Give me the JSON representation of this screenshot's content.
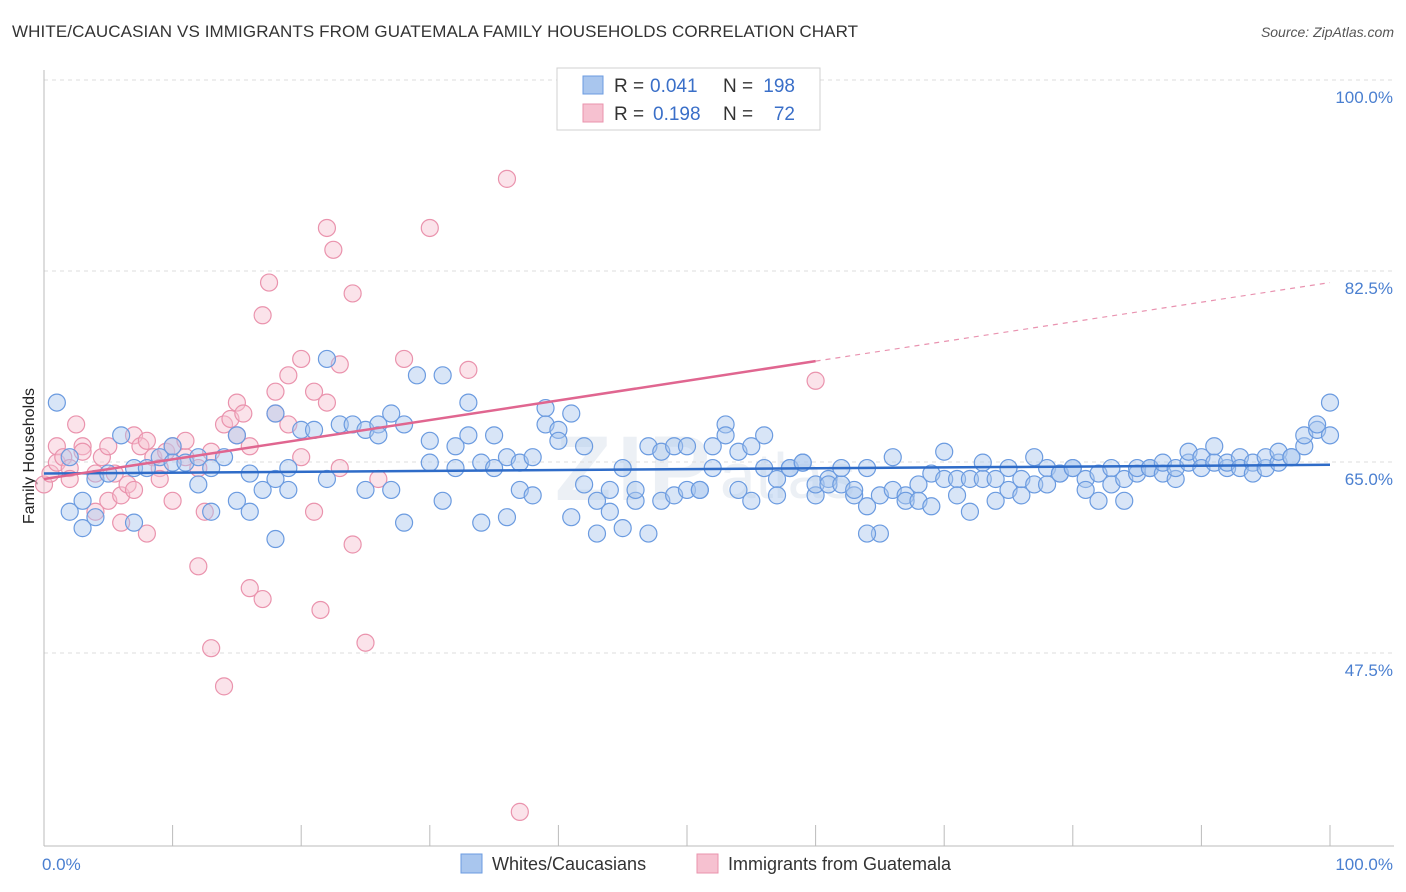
{
  "title": "WHITE/CAUCASIAN VS IMMIGRANTS FROM GUATEMALA FAMILY HOUSEHOLDS CORRELATION CHART",
  "source": "Source: ZipAtlas.com",
  "chart_data": {
    "type": "scatter",
    "ylabel": "Family Households",
    "xlim": [
      0,
      100
    ],
    "ylim": [
      30,
      100
    ],
    "x_tick_labels": {
      "left": "0.0%",
      "right": "100.0%"
    },
    "y_ticks": [
      {
        "value": 100.0,
        "label": "100.0%"
      },
      {
        "value": 82.5,
        "label": "82.5%"
      },
      {
        "value": 65.0,
        "label": "65.0%"
      },
      {
        "value": 47.5,
        "label": "47.5%"
      }
    ],
    "watermark": "ZIPatlas",
    "legend": {
      "rows": [
        {
          "r_label": "R =",
          "r_value": "0.041",
          "n_label": "N =",
          "n_value": "198"
        },
        {
          "r_label": "R =",
          "r_value": "0.198",
          "n_label": "N =",
          "n_value": "72"
        }
      ]
    },
    "colors": {
      "blue_fill": "#a9c6ee",
      "blue_stroke": "#6b9be0",
      "blue_line": "#2f6cc8",
      "pink_fill": "#f6c1d0",
      "pink_stroke": "#ea93ad",
      "pink_line": "#e06690"
    },
    "series": [
      {
        "name": "Whites/Caucasians",
        "trend": {
          "x0": 0,
          "y0": 65.5,
          "x1": 100,
          "y1": 66.3,
          "solid_to": 100
        },
        "points": [
          [
            1,
            72
          ],
          [
            2,
            62
          ],
          [
            2,
            67
          ],
          [
            3,
            63
          ],
          [
            3,
            60.5
          ],
          [
            4,
            61.5
          ],
          [
            4,
            65
          ],
          [
            5,
            65.5
          ],
          [
            6,
            69
          ],
          [
            7,
            61
          ],
          [
            7,
            66
          ],
          [
            8,
            66
          ],
          [
            9,
            67
          ],
          [
            10,
            68
          ],
          [
            10,
            66.5
          ],
          [
            11,
            66.5
          ],
          [
            12,
            64.5
          ],
          [
            12,
            67
          ],
          [
            13,
            66
          ],
          [
            13,
            62
          ],
          [
            14,
            67
          ],
          [
            15,
            69
          ],
          [
            16,
            65.5
          ],
          [
            16,
            62
          ],
          [
            17,
            64
          ],
          [
            18,
            65
          ],
          [
            18,
            71
          ],
          [
            19,
            64
          ],
          [
            19,
            66
          ],
          [
            20,
            69.5
          ],
          [
            21,
            69.5
          ],
          [
            22,
            65
          ],
          [
            22,
            76
          ],
          [
            23,
            70
          ],
          [
            24,
            70
          ],
          [
            25,
            64
          ],
          [
            25,
            69.5
          ],
          [
            26,
            70
          ],
          [
            27,
            71
          ],
          [
            28,
            70
          ],
          [
            28,
            61
          ],
          [
            29,
            74.5
          ],
          [
            30,
            66.5
          ],
          [
            30,
            68.5
          ],
          [
            31,
            63
          ],
          [
            31,
            74.5
          ],
          [
            32,
            68
          ],
          [
            32,
            66
          ],
          [
            33,
            69
          ],
          [
            33,
            72
          ],
          [
            34,
            66.5
          ],
          [
            35,
            66
          ],
          [
            35,
            69
          ],
          [
            36,
            67
          ],
          [
            36,
            61.5
          ],
          [
            37,
            66.5
          ],
          [
            37,
            64
          ],
          [
            38,
            67
          ],
          [
            38,
            63.5
          ],
          [
            39,
            71.5
          ],
          [
            39,
            70
          ],
          [
            40,
            69.5
          ],
          [
            40,
            68.5
          ],
          [
            41,
            71
          ],
          [
            41,
            61.5
          ],
          [
            42,
            68
          ],
          [
            42,
            64.5
          ],
          [
            43,
            63
          ],
          [
            43,
            60
          ],
          [
            44,
            62
          ],
          [
            44,
            64
          ],
          [
            45,
            66
          ],
          [
            45,
            60.5
          ],
          [
            46,
            63
          ],
          [
            46,
            64
          ],
          [
            47,
            68
          ],
          [
            47,
            60
          ],
          [
            48,
            63
          ],
          [
            48,
            67.5
          ],
          [
            49,
            68
          ],
          [
            49,
            63.5
          ],
          [
            50,
            68
          ],
          [
            50,
            64
          ],
          [
            51,
            64
          ],
          [
            51,
            64
          ],
          [
            52,
            66
          ],
          [
            52,
            68
          ],
          [
            53,
            70
          ],
          [
            53,
            69
          ],
          [
            54,
            64
          ],
          [
            54,
            67.5
          ],
          [
            55,
            68
          ],
          [
            55,
            63
          ],
          [
            56,
            66
          ],
          [
            56,
            69
          ],
          [
            57,
            65
          ],
          [
            57,
            63.5
          ],
          [
            58,
            66
          ],
          [
            58,
            66
          ],
          [
            59,
            66.5
          ],
          [
            59,
            66.5
          ],
          [
            60,
            63.5
          ],
          [
            60,
            64.5
          ],
          [
            61,
            65
          ],
          [
            61,
            64.5
          ],
          [
            62,
            64.5
          ],
          [
            62,
            66
          ],
          [
            63,
            63.5
          ],
          [
            63,
            64
          ],
          [
            64,
            62.5
          ],
          [
            64,
            66
          ],
          [
            65,
            63.5
          ],
          [
            65,
            60
          ],
          [
            66,
            67
          ],
          [
            66,
            64
          ],
          [
            67,
            63.5
          ],
          [
            67,
            63
          ],
          [
            68,
            64.5
          ],
          [
            68,
            63
          ],
          [
            69,
            65.5
          ],
          [
            69,
            62.5
          ],
          [
            70,
            65
          ],
          [
            70,
            67.5
          ],
          [
            71,
            65
          ],
          [
            71,
            63.5
          ],
          [
            72,
            62
          ],
          [
            72,
            65
          ],
          [
            73,
            65
          ],
          [
            73,
            66.5
          ],
          [
            74,
            63
          ],
          [
            74,
            65
          ],
          [
            75,
            64
          ],
          [
            75,
            66
          ],
          [
            76,
            63.5
          ],
          [
            76,
            65
          ],
          [
            77,
            64.5
          ],
          [
            77,
            67
          ],
          [
            78,
            66
          ],
          [
            78,
            64.5
          ],
          [
            79,
            65.5
          ],
          [
            79,
            65.5
          ],
          [
            80,
            66
          ],
          [
            80,
            66
          ],
          [
            81,
            65
          ],
          [
            81,
            64
          ],
          [
            82,
            65.5
          ],
          [
            82,
            63
          ],
          [
            83,
            66
          ],
          [
            83,
            64.5
          ],
          [
            84,
            65
          ],
          [
            84,
            63
          ],
          [
            85,
            65.5
          ],
          [
            85,
            66
          ],
          [
            86,
            66
          ],
          [
            86,
            66
          ],
          [
            87,
            65.5
          ],
          [
            87,
            66.5
          ],
          [
            88,
            65
          ],
          [
            88,
            66
          ],
          [
            89,
            66.5
          ],
          [
            89,
            67.5
          ],
          [
            90,
            67
          ],
          [
            90,
            66
          ],
          [
            91,
            66.5
          ],
          [
            91,
            68
          ],
          [
            92,
            66
          ],
          [
            92,
            66.5
          ],
          [
            93,
            67
          ],
          [
            93,
            66
          ],
          [
            94,
            66.5
          ],
          [
            94,
            65.5
          ],
          [
            95,
            66
          ],
          [
            95,
            67
          ],
          [
            96,
            66.5
          ],
          [
            96,
            67.5
          ],
          [
            97,
            67
          ],
          [
            97,
            67
          ],
          [
            98,
            68
          ],
          [
            98,
            69
          ],
          [
            99,
            69.5
          ],
          [
            99,
            70
          ],
          [
            100,
            69
          ],
          [
            100,
            72
          ],
          [
            26,
            69
          ],
          [
            27,
            64
          ],
          [
            15,
            63
          ],
          [
            34,
            61
          ],
          [
            64,
            60
          ],
          [
            18,
            59.5
          ]
        ]
      },
      {
        "name": "Immigrants from Guatemala",
        "trend": {
          "x0": 0,
          "y0": 65.0,
          "x1": 100,
          "y1": 83.0,
          "solid_to": 60
        },
        "points": [
          [
            0,
            64.5
          ],
          [
            0.5,
            65.5
          ],
          [
            1,
            66.5
          ],
          [
            1,
            68
          ],
          [
            1.5,
            67
          ],
          [
            2,
            66
          ],
          [
            2,
            65
          ],
          [
            2.5,
            70
          ],
          [
            3,
            68
          ],
          [
            3,
            67.5
          ],
          [
            4,
            62
          ],
          [
            4,
            65.5
          ],
          [
            4.5,
            67
          ],
          [
            5,
            68
          ],
          [
            5,
            63
          ],
          [
            5.5,
            65.5
          ],
          [
            6,
            61
          ],
          [
            6,
            63.5
          ],
          [
            6.5,
            64.5
          ],
          [
            7,
            69
          ],
          [
            7,
            64
          ],
          [
            7.5,
            68
          ],
          [
            8,
            60
          ],
          [
            8,
            68.5
          ],
          [
            8.5,
            67
          ],
          [
            9,
            66
          ],
          [
            9,
            65
          ],
          [
            9.5,
            67.5
          ],
          [
            10,
            63
          ],
          [
            10,
            68
          ],
          [
            11,
            67
          ],
          [
            11,
            68.5
          ],
          [
            12,
            57
          ],
          [
            12,
            66
          ],
          [
            12.5,
            62
          ],
          [
            13,
            49.5
          ],
          [
            13,
            67.5
          ],
          [
            14,
            46
          ],
          [
            14,
            70
          ],
          [
            14.5,
            70.5
          ],
          [
            15,
            72
          ],
          [
            15,
            69
          ],
          [
            15.5,
            71
          ],
          [
            16,
            55
          ],
          [
            16,
            68
          ],
          [
            17,
            54
          ],
          [
            17,
            80
          ],
          [
            17.5,
            83
          ],
          [
            18,
            73
          ],
          [
            18,
            71
          ],
          [
            19,
            70
          ],
          [
            19,
            74.5
          ],
          [
            20,
            76
          ],
          [
            20,
            67
          ],
          [
            21,
            73
          ],
          [
            21,
            62
          ],
          [
            21.5,
            53
          ],
          [
            22,
            72
          ],
          [
            22,
            88
          ],
          [
            22.5,
            86
          ],
          [
            23,
            66
          ],
          [
            23,
            75.5
          ],
          [
            24,
            82
          ],
          [
            24,
            59
          ],
          [
            25,
            50
          ],
          [
            26,
            65
          ],
          [
            28,
            76
          ],
          [
            30,
            88
          ],
          [
            33,
            75
          ],
          [
            36,
            92.5
          ],
          [
            37,
            34.5
          ],
          [
            60,
            74
          ]
        ]
      }
    ]
  }
}
